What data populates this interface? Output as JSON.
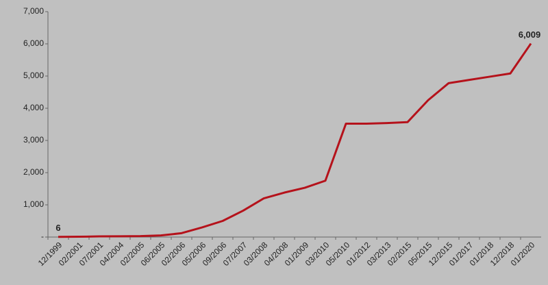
{
  "chart_data": {
    "type": "line",
    "categories": [
      "12/1999",
      "02/2001",
      "07/2001",
      "04/2004",
      "02/2005",
      "06/2005",
      "02/2006",
      "05/2006",
      "09/2006",
      "07/2007",
      "03/2008",
      "04/2008",
      "01/2009",
      "03/2010",
      "05/2010",
      "01/2012",
      "03/2013",
      "02/2015",
      "05/2015",
      "12/2015",
      "01/2017",
      "01/2018",
      "12/2018",
      "01/2020"
    ],
    "values": [
      6,
      10,
      20,
      25,
      30,
      50,
      120,
      300,
      500,
      820,
      1200,
      1380,
      1530,
      1750,
      3520,
      3520,
      3540,
      3570,
      4250,
      4780,
      4880,
      4980,
      5080,
      6009
    ],
    "value_labels": [
      "6",
      null,
      null,
      null,
      null,
      null,
      null,
      null,
      null,
      null,
      null,
      null,
      null,
      null,
      null,
      null,
      null,
      null,
      null,
      null,
      null,
      null,
      null,
      "6,009"
    ],
    "color": "#b5121b",
    "ylim": [
      0,
      7000
    ],
    "yticks": [
      {
        "value": 0,
        "label": "-"
      },
      {
        "value": 1000,
        "label": "1,000"
      },
      {
        "value": 2000,
        "label": "2,000"
      },
      {
        "value": 3000,
        "label": "3,000"
      },
      {
        "value": 4000,
        "label": "4,000"
      },
      {
        "value": 5000,
        "label": "5,000"
      },
      {
        "value": 6000,
        "label": "6,000"
      },
      {
        "value": 7000,
        "label": "7,000"
      }
    ],
    "grid": false
  }
}
